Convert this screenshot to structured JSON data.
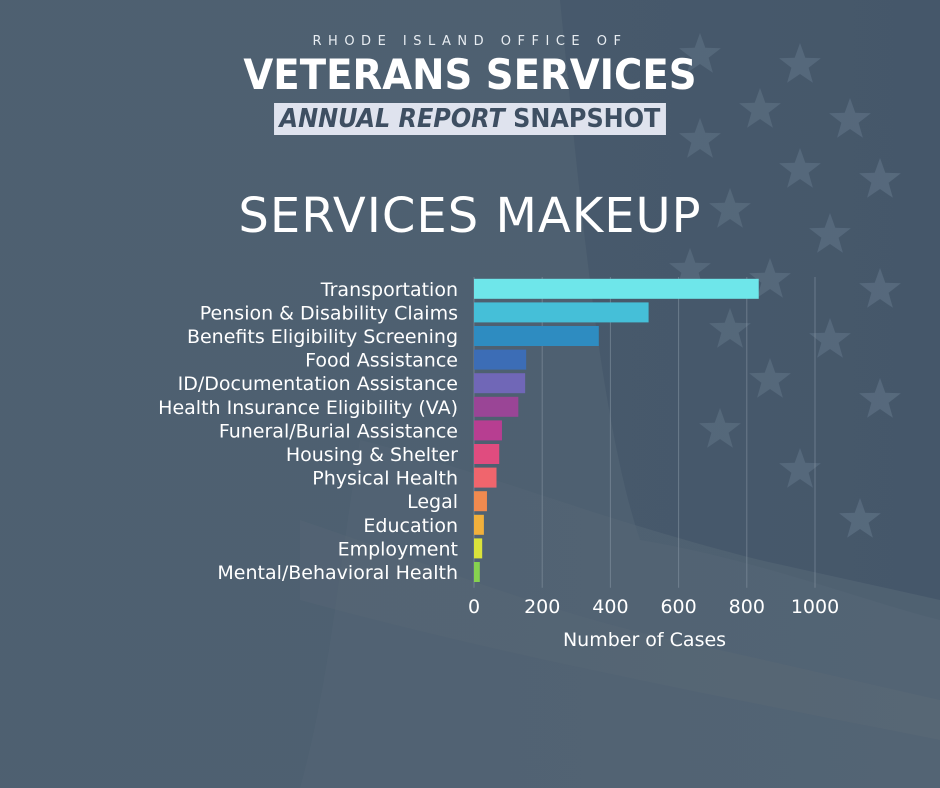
{
  "header": {
    "supertitle": "RHODE ISLAND OFFICE OF",
    "title": "VETERANS SERVICES",
    "subtitle_italic": "ANNUAL REPORT",
    "subtitle_rest": "SNAPSHOT"
  },
  "colors": {
    "background": "#4d5f70",
    "text": "#ffffff",
    "subtitle_band": "#dfe3ee"
  },
  "chart_data": {
    "type": "bar",
    "orientation": "horizontal",
    "title": "SERVICES MAKEUP",
    "xlabel": "Number of Cases",
    "ylabel": "",
    "xlim": [
      0,
      1000
    ],
    "xticks": [
      0,
      200,
      400,
      600,
      800,
      1000
    ],
    "grid": true,
    "categories": [
      "Transportation",
      "Pension & Disability Claims",
      "Benefits Eligibility Screening",
      "Food Assistance",
      "ID/Documentation Assistance",
      "Health Insurance Eligibility (VA)",
      "Funeral/Burial Assistance",
      "Housing & Shelter",
      "Physical Health",
      "Legal",
      "Education",
      "Employment",
      "Mental/Behavioral Health"
    ],
    "values": [
      835,
      512,
      366,
      153,
      150,
      130,
      82,
      74,
      66,
      38,
      29,
      24,
      17
    ],
    "bar_colors": [
      "#6ee6ea",
      "#45bfd8",
      "#2e8cc1",
      "#3c6db6",
      "#7067b7",
      "#9a4596",
      "#b73e91",
      "#e04c7f",
      "#f0656d",
      "#f08a4f",
      "#f1b03c",
      "#dbe33b",
      "#86d24f"
    ]
  }
}
